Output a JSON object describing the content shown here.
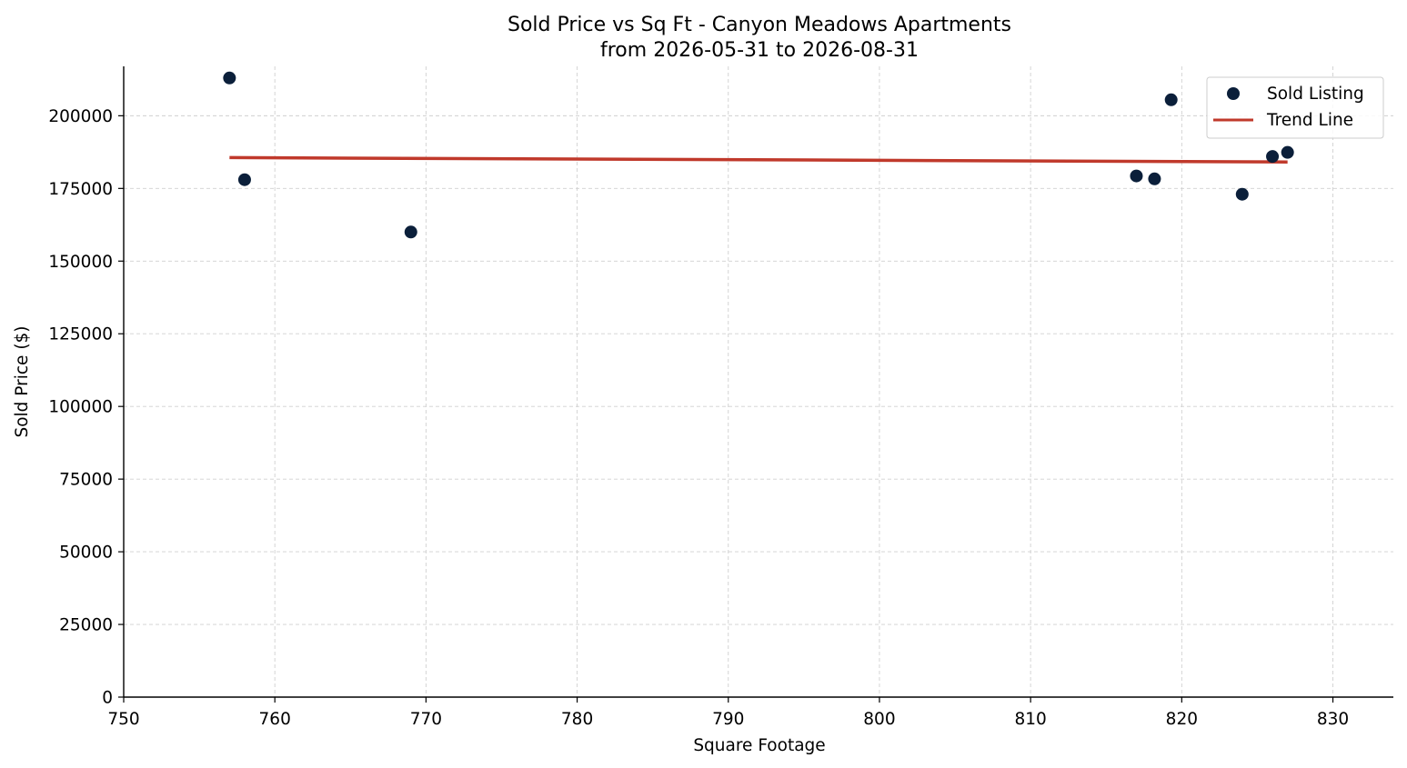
{
  "chart_data": {
    "type": "scatter",
    "title": "Sold Price vs Sq Ft - Canyon Meadows Apartments",
    "subtitle": "from 2026-05-31 to 2026-08-31",
    "xlabel": "Square Footage",
    "ylabel": "Sold Price ($)",
    "xlim": [
      750,
      834
    ],
    "ylim": [
      0,
      217000
    ],
    "xticks": [
      750,
      760,
      770,
      780,
      790,
      800,
      810,
      820,
      830
    ],
    "yticks": [
      0,
      25000,
      50000,
      75000,
      100000,
      125000,
      150000,
      175000,
      200000
    ],
    "grid": true,
    "legend_position": "top-right",
    "series": [
      {
        "name": "Sold Listing",
        "kind": "scatter",
        "color": "#0b1f3a",
        "points": [
          {
            "x": 757,
            "y": 213000
          },
          {
            "x": 758,
            "y": 178000
          },
          {
            "x": 769,
            "y": 160000
          },
          {
            "x": 817,
            "y": 179300
          },
          {
            "x": 818.2,
            "y": 178300
          },
          {
            "x": 819.3,
            "y": 205500
          },
          {
            "x": 824,
            "y": 173000
          },
          {
            "x": 826,
            "y": 186000
          },
          {
            "x": 827,
            "y": 187400
          }
        ]
      },
      {
        "name": "Trend Line",
        "kind": "line",
        "color": "#c0392b",
        "points": [
          {
            "x": 757,
            "y": 185600
          },
          {
            "x": 827,
            "y": 184100
          }
        ]
      }
    ]
  }
}
